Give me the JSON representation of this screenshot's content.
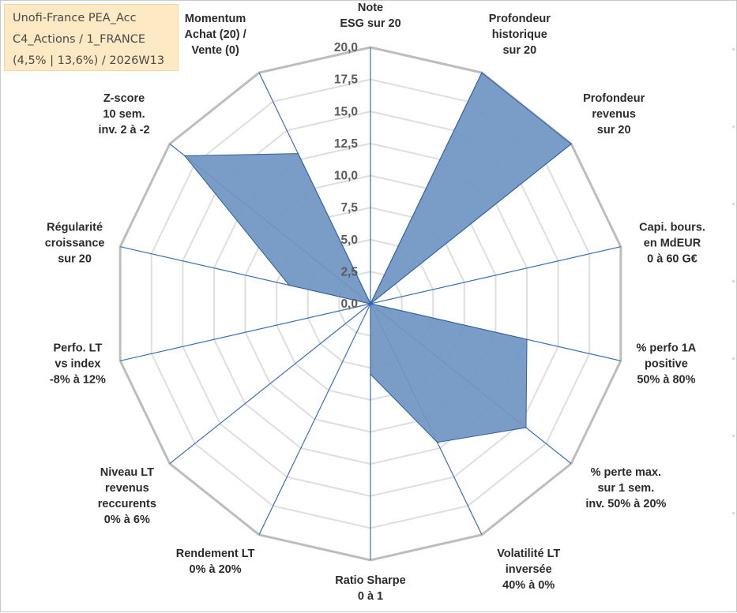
{
  "title_box": {
    "lines": [
      "Unofi-France PEA_Acc",
      "C4_Actions / 1_FRANCE",
      "(4,5% | 13,6%) / 2026W13"
    ]
  },
  "chart_data": {
    "type": "radar",
    "title": "",
    "rlim": [
      0,
      20
    ],
    "r_ticks": [
      "0,0",
      "2,5",
      "5,0",
      "7,5",
      "10,0",
      "12,5",
      "15,0",
      "17,5",
      "20,0"
    ],
    "grid": true,
    "axes": [
      {
        "label": [
          "Note",
          "ESG sur 20"
        ]
      },
      {
        "label": [
          "Profondeur",
          "historique",
          "sur 20"
        ]
      },
      {
        "label": [
          "Profondeur",
          "revenus",
          "sur 20"
        ]
      },
      {
        "label": [
          "Capi. bours.",
          "en MdEUR",
          "0 à 60 G€"
        ]
      },
      {
        "label": [
          "% perfo 1A",
          "positive",
          "50% à 80%"
        ]
      },
      {
        "label": [
          "% perte max.",
          "sur 1 sem.",
          "inv. 50% à 20%"
        ]
      },
      {
        "label": [
          "Volatilité LT",
          "inversée",
          "40% à 0%"
        ]
      },
      {
        "label": [
          "Ratio Sharpe",
          "0 à 1"
        ]
      },
      {
        "label": [
          "Rendement LT",
          "0% à 20%"
        ]
      },
      {
        "label": [
          "Niveau LT",
          "revenus",
          "reccurents",
          "0% à 6%"
        ]
      },
      {
        "label": [
          "Perfo. LT",
          "vs index",
          "-8% à 12%"
        ]
      },
      {
        "label": [
          "Régularité",
          "croissance",
          "sur 20"
        ]
      },
      {
        "label": [
          "Z-score",
          "10 sem.",
          "inv. 2 à -2"
        ]
      },
      {
        "label": [
          "Momentum",
          "Achat (20) /",
          "Vente (0)"
        ]
      }
    ],
    "series": [
      {
        "values": [
          0,
          20,
          20,
          0,
          12.5,
          15.5,
          12,
          5.5,
          0,
          0,
          0,
          6.5,
          18.5,
          13
        ],
        "color": "#4f7db5",
        "fill": "#6f95c2",
        "edge": "#2f5f9e"
      }
    ]
  }
}
